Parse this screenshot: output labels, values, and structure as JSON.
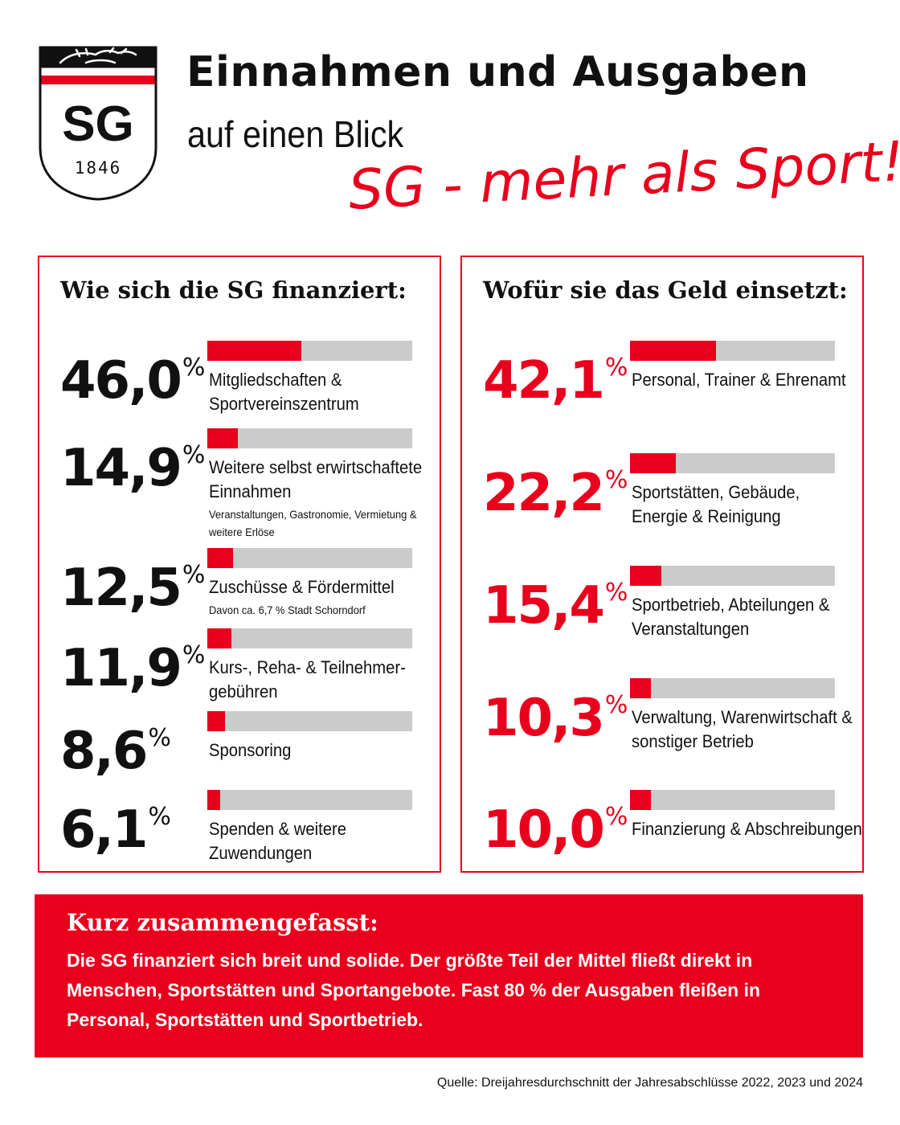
{
  "header": {
    "title": "Einnahmen und Ausgaben",
    "subtitle": "auf einen Blick",
    "slogan": "SG - mehr als Sport!"
  },
  "logo": {
    "text": "SG",
    "year": "1846"
  },
  "colors": {
    "accent": "#e8001c",
    "bar_track": "#cbcbcb",
    "text": "#111111"
  },
  "chart_data": [
    {
      "type": "bar",
      "title": "Wie sich die SG finanziert:",
      "unit": "%",
      "categories": [
        "Mitgliedschaften & Sportvereinszentrum",
        "Weitere selbst erwirtschaftete Einnahmen",
        "Zuschüsse & Fördermittel",
        "Kurs-, Reha- & Teilnehmergebühren",
        "Sponsoring",
        "Spenden & weitere Zuwendungen"
      ],
      "values": [
        46.0,
        14.9,
        12.5,
        11.9,
        8.6,
        6.1
      ],
      "ylim": [
        0,
        100
      ],
      "items": [
        {
          "value": 46.0,
          "pct_label": "46,0",
          "label": "Mitgliedschaften &\nSportvereinszentrum",
          "note": ""
        },
        {
          "value": 14.9,
          "pct_label": "14,9",
          "label": "Weitere selbst erwirtschaftete\nEinnahmen",
          "note": "Veranstaltungen, Gastronomie, Vermietung & weitere Erlöse"
        },
        {
          "value": 12.5,
          "pct_label": "12,5",
          "label": "Zuschüsse & Fördermittel",
          "note": "Davon ca. 6,7 % Stadt Schorndorf"
        },
        {
          "value": 11.9,
          "pct_label": "11,9",
          "label": "Kurs-, Reha- & Teilnehmer-\ngebühren",
          "note": ""
        },
        {
          "value": 8.6,
          "pct_label": "8,6",
          "label": "Sponsoring",
          "note": ""
        },
        {
          "value": 6.1,
          "pct_label": "6,1",
          "label": "Spenden & weitere Zuwendungen",
          "note": ""
        }
      ]
    },
    {
      "type": "bar",
      "title": "Wofür sie das Geld einsetzt:",
      "unit": "%",
      "categories": [
        "Personal, Trainer & Ehrenamt",
        "Sportstätten, Gebäude, Energie & Reinigung",
        "Sportbetrieb, Abteilungen & Veranstaltungen",
        "Verwaltung, Warenwirtschaft & sonstiger Betrieb",
        "Finanzierung & Abschreibungen"
      ],
      "values": [
        42.1,
        22.2,
        15.4,
        10.3,
        10.0
      ],
      "ylim": [
        0,
        100
      ],
      "items": [
        {
          "value": 42.1,
          "pct_label": "42,1",
          "label": "Personal, Trainer & Ehrenamt",
          "note": ""
        },
        {
          "value": 22.2,
          "pct_label": "22,2",
          "label": "Sportstätten, Gebäude,\nEnergie & Reinigung",
          "note": ""
        },
        {
          "value": 15.4,
          "pct_label": "15,4",
          "label": "Sportbetrieb, Abteilungen &\nVeranstaltungen",
          "note": ""
        },
        {
          "value": 10.3,
          "pct_label": "10,3",
          "label": "Verwaltung, Warenwirtschaft &\nsonstiger Betrieb",
          "note": ""
        },
        {
          "value": 10.0,
          "pct_label": "10,0",
          "label": "Finanzierung & Abschreibungen",
          "note": ""
        }
      ]
    }
  ],
  "summary": {
    "title": "Kurz zusammengefasst:",
    "text": "Die SG finanziert sich breit und solide. Der größte Teil der Mittel fließt direkt in Menschen, Sportstätten und Sportangebote. Fast 80 % der Ausgaben fleißen in Personal, Sportstätten und Sportbetrieb."
  },
  "source": "Quelle: Dreijahresdurchschnitt der Jahresabschlüsse 2022, 2023 und 2024"
}
